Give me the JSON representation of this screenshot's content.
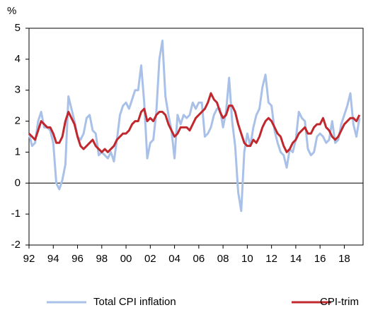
{
  "chart_data": {
    "type": "line",
    "y_label": "%",
    "xlim": [
      1992,
      2019.55
    ],
    "ylim": [
      -2,
      5
    ],
    "yticks": [
      -2,
      -1,
      0,
      1,
      2,
      3,
      4,
      5
    ],
    "xticks": [
      {
        "value": 1992,
        "label": "92"
      },
      {
        "value": 1994,
        "label": "94"
      },
      {
        "value": 1996,
        "label": "96"
      },
      {
        "value": 1998,
        "label": "98"
      },
      {
        "value": 2000,
        "label": "00"
      },
      {
        "value": 2002,
        "label": "02"
      },
      {
        "value": 2004,
        "label": "04"
      },
      {
        "value": 2006,
        "label": "06"
      },
      {
        "value": 2008,
        "label": "08"
      },
      {
        "value": 2010,
        "label": "10"
      },
      {
        "value": 2012,
        "label": "12"
      },
      {
        "value": 2014,
        "label": "14"
      },
      {
        "value": 2016,
        "label": "16"
      },
      {
        "value": 2018,
        "label": "18"
      }
    ],
    "grid": false,
    "legend": "bottom",
    "x": [
      1992,
      1992.25,
      1992.5,
      1992.75,
      1993,
      1993.25,
      1993.5,
      1993.75,
      1994,
      1994.25,
      1994.5,
      1994.75,
      1995,
      1995.25,
      1995.5,
      1995.75,
      1996,
      1996.25,
      1996.5,
      1996.75,
      1997,
      1997.25,
      1997.5,
      1997.75,
      1998,
      1998.25,
      1998.5,
      1998.75,
      1999,
      1999.25,
      1999.5,
      1999.75,
      2000,
      2000.25,
      2000.5,
      2000.75,
      2001,
      2001.25,
      2001.5,
      2001.75,
      2002,
      2002.25,
      2002.5,
      2002.75,
      2003,
      2003.25,
      2003.5,
      2003.75,
      2004,
      2004.25,
      2004.5,
      2004.75,
      2005,
      2005.25,
      2005.5,
      2005.75,
      2006,
      2006.25,
      2006.5,
      2006.75,
      2007,
      2007.25,
      2007.5,
      2007.75,
      2008,
      2008.25,
      2008.5,
      2008.75,
      2009,
      2009.25,
      2009.5,
      2009.75,
      2010,
      2010.25,
      2010.5,
      2010.75,
      2011,
      2011.25,
      2011.5,
      2011.75,
      2012,
      2012.25,
      2012.5,
      2012.75,
      2013,
      2013.25,
      2013.5,
      2013.75,
      2014,
      2014.25,
      2014.5,
      2014.75,
      2015,
      2015.25,
      2015.5,
      2015.75,
      2016,
      2016.25,
      2016.5,
      2016.75,
      2017,
      2017.25,
      2017.5,
      2017.75,
      2018,
      2018.25,
      2018.5,
      2018.75,
      2019,
      2019.25
    ],
    "series": [
      {
        "name": "Total CPI inflation",
        "color": "#a9c1e8",
        "values": [
          1.6,
          1.2,
          1.3,
          2.0,
          2.3,
          1.8,
          1.8,
          1.7,
          1.3,
          0.0,
          -0.2,
          0.1,
          0.6,
          2.8,
          2.4,
          2.0,
          1.5,
          1.4,
          1.6,
          2.1,
          2.2,
          1.7,
          1.6,
          0.9,
          1.0,
          0.9,
          0.8,
          1.0,
          0.7,
          1.4,
          2.2,
          2.5,
          2.6,
          2.4,
          2.7,
          3.0,
          3.0,
          3.8,
          2.6,
          0.8,
          1.3,
          1.4,
          2.3,
          4.0,
          4.6,
          2.8,
          2.2,
          1.7,
          0.8,
          2.2,
          1.9,
          2.2,
          2.1,
          2.2,
          2.6,
          2.4,
          2.6,
          2.6,
          1.5,
          1.6,
          1.8,
          2.2,
          2.4,
          2.4,
          1.8,
          2.3,
          3.4,
          2.0,
          1.2,
          -0.3,
          -0.9,
          1.0,
          1.6,
          1.2,
          1.8,
          2.2,
          2.4,
          3.1,
          3.5,
          2.6,
          2.5,
          1.7,
          1.3,
          1.0,
          0.9,
          0.5,
          1.1,
          1.0,
          1.4,
          2.3,
          2.1,
          2.0,
          1.1,
          0.9,
          1.0,
          1.5,
          1.6,
          1.5,
          1.3,
          1.4,
          2.0,
          1.3,
          1.4,
          1.9,
          2.2,
          2.5,
          2.9,
          1.9,
          1.5,
          2.1
        ]
      },
      {
        "name": "CPI-trim",
        "color": "#c0282d",
        "values": [
          1.6,
          1.5,
          1.4,
          1.7,
          2.0,
          1.9,
          1.8,
          1.8,
          1.6,
          1.3,
          1.3,
          1.5,
          2.0,
          2.3,
          2.1,
          1.9,
          1.5,
          1.2,
          1.1,
          1.2,
          1.3,
          1.4,
          1.2,
          1.1,
          1.0,
          1.1,
          1.0,
          1.1,
          1.2,
          1.4,
          1.5,
          1.6,
          1.6,
          1.7,
          1.9,
          2.0,
          2.0,
          2.3,
          2.4,
          2.0,
          2.1,
          2.0,
          2.2,
          2.3,
          2.3,
          2.2,
          1.9,
          1.7,
          1.5,
          1.6,
          1.8,
          1.8,
          1.8,
          1.7,
          1.9,
          2.1,
          2.2,
          2.3,
          2.4,
          2.6,
          2.9,
          2.7,
          2.6,
          2.3,
          2.1,
          2.2,
          2.5,
          2.5,
          2.3,
          1.9,
          1.6,
          1.3,
          1.2,
          1.2,
          1.4,
          1.3,
          1.5,
          1.8,
          2.0,
          2.1,
          2.0,
          1.8,
          1.6,
          1.5,
          1.2,
          1.0,
          1.1,
          1.3,
          1.4,
          1.6,
          1.7,
          1.8,
          1.6,
          1.6,
          1.8,
          1.9,
          1.9,
          2.1,
          1.8,
          1.7,
          1.5,
          1.4,
          1.5,
          1.7,
          1.9,
          2.0,
          2.1,
          2.1,
          2.0,
          2.2
        ]
      }
    ]
  }
}
